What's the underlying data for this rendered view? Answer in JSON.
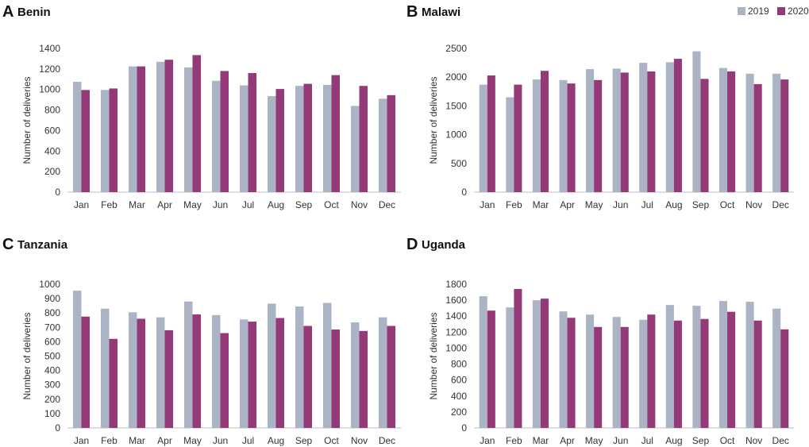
{
  "colors": {
    "series_2019": "#aab4c5",
    "series_2020": "#953a78",
    "axis": "#bfbfbf",
    "text": "#333333"
  },
  "legend": {
    "placement": "top-right",
    "entries": [
      "2019",
      "2020"
    ]
  },
  "chart_data": [
    {
      "type": "bar",
      "panel": "A",
      "title": "Benin",
      "xlabel": "",
      "ylabel": "Number of deliveries",
      "ylim": [
        0,
        1400
      ],
      "yticks": [
        0,
        200,
        400,
        600,
        800,
        1000,
        1200,
        1400
      ],
      "grid": false,
      "categories": [
        "Jan",
        "Feb",
        "Mar",
        "Apr",
        "May",
        "Jun",
        "Jul",
        "Aug",
        "Sep",
        "Oct",
        "Nov",
        "Dec"
      ],
      "series": [
        {
          "name": "2019",
          "values": [
            1075,
            995,
            1225,
            1270,
            1215,
            1085,
            1040,
            935,
            1035,
            1045,
            840,
            910
          ]
        },
        {
          "name": "2020",
          "values": [
            995,
            1010,
            1225,
            1290,
            1335,
            1180,
            1160,
            1005,
            1055,
            1140,
            1035,
            945
          ]
        }
      ]
    },
    {
      "type": "bar",
      "panel": "B",
      "title": "Malawi",
      "xlabel": "",
      "ylabel": "Number of deliveries",
      "ylim": [
        0,
        2500
      ],
      "yticks": [
        0,
        500,
        1000,
        1500,
        2000,
        2500
      ],
      "grid": false,
      "categories": [
        "Jan",
        "Feb",
        "Mar",
        "Apr",
        "May",
        "Jun",
        "Jul",
        "Aug",
        "Sep",
        "Oct",
        "Nov",
        "Dec"
      ],
      "series": [
        {
          "name": "2019",
          "values": [
            1870,
            1650,
            1960,
            1950,
            2140,
            2150,
            2250,
            2260,
            2450,
            2160,
            2060,
            2060
          ]
        },
        {
          "name": "2020",
          "values": [
            2030,
            1870,
            2110,
            1890,
            1950,
            2080,
            2100,
            2320,
            1970,
            2100,
            1880,
            1960
          ]
        }
      ]
    },
    {
      "type": "bar",
      "panel": "C",
      "title": "Tanzania",
      "xlabel": "",
      "ylabel": "Number of deliveries",
      "ylim": [
        0,
        1000
      ],
      "yticks": [
        0,
        100,
        200,
        300,
        400,
        500,
        600,
        700,
        800,
        900,
        1000
      ],
      "grid": false,
      "categories": [
        "Jan",
        "Feb",
        "Mar",
        "Apr",
        "May",
        "Jun",
        "Jul",
        "Aug",
        "Sep",
        "Oct",
        "Nov",
        "Dec"
      ],
      "series": [
        {
          "name": "2019",
          "values": [
            955,
            830,
            805,
            770,
            880,
            785,
            755,
            865,
            845,
            870,
            735,
            770
          ]
        },
        {
          "name": "2020",
          "values": [
            775,
            620,
            760,
            680,
            790,
            660,
            740,
            765,
            710,
            685,
            675,
            710
          ]
        }
      ]
    },
    {
      "type": "bar",
      "panel": "D",
      "title": "Uganda",
      "xlabel": "",
      "ylabel": "Number of deliveries",
      "ylim": [
        0,
        1800
      ],
      "yticks": [
        0,
        200,
        400,
        600,
        800,
        1000,
        1200,
        1400,
        1600,
        1800
      ],
      "grid": false,
      "categories": [
        "Jan",
        "Feb",
        "Mar",
        "Apr",
        "May",
        "Jun",
        "Jul",
        "Aug",
        "Sep",
        "Oct",
        "Nov",
        "Dec"
      ],
      "series": [
        {
          "name": "2019",
          "values": [
            1650,
            1510,
            1600,
            1460,
            1420,
            1390,
            1355,
            1540,
            1530,
            1590,
            1580,
            1495
          ]
        },
        {
          "name": "2020",
          "values": [
            1470,
            1740,
            1620,
            1380,
            1265,
            1265,
            1420,
            1345,
            1365,
            1455,
            1345,
            1235
          ]
        }
      ]
    }
  ]
}
